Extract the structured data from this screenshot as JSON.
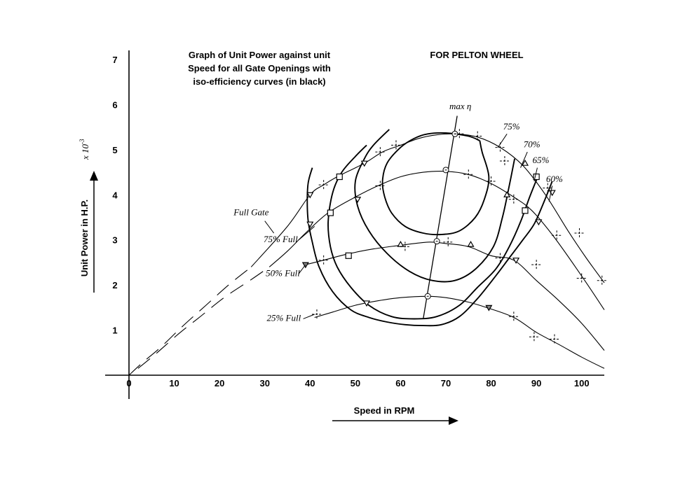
{
  "chart_data": {
    "type": "line",
    "title": "Graph of Unit Power against unit Speed for all Gate Openings with iso-efficiency curves (in black)",
    "title_lines": [
      "Graph of Unit Power against unit",
      "Speed for all Gate Openings with",
      "iso-efficiency curves (in black)"
    ],
    "subtitle": "FOR PELTON WHEEL",
    "xlabel": "Speed in RPM",
    "ylabel": "Unit Power in H.P.",
    "y_multiplier": "x 10",
    "y_multiplier_exp": "-3",
    "xlim": [
      0,
      105
    ],
    "ylim": [
      0,
      7
    ],
    "x_ticks": [
      "0",
      "10",
      "20",
      "30",
      "40",
      "50",
      "60",
      "70",
      "80",
      "90",
      "100"
    ],
    "y_ticks": [
      "1",
      "2",
      "3",
      "4",
      "5",
      "6",
      "7"
    ],
    "grid": false,
    "series": [
      {
        "name": "Full Gate",
        "dashed_x": [
          0,
          3,
          7,
          12,
          17,
          22,
          27
        ],
        "dashed_y": [
          0,
          0.28,
          0.62,
          1.1,
          1.55,
          2.0,
          2.4
        ],
        "x": [
          27,
          35,
          40,
          43,
          46,
          52,
          56,
          60,
          64,
          68,
          72,
          77,
          82,
          87,
          92,
          97,
          101,
          105
        ],
        "y": [
          2.4,
          3.3,
          4.0,
          4.22,
          4.4,
          4.7,
          4.95,
          5.1,
          5.25,
          5.33,
          5.35,
          5.28,
          5.05,
          4.65,
          4.0,
          3.2,
          2.6,
          2.05
        ]
      },
      {
        "name": "75% Full",
        "dashed_x": [
          2,
          6,
          11,
          16,
          21,
          27,
          31
        ],
        "dashed_y": [
          0.15,
          0.48,
          0.92,
          1.32,
          1.72,
          2.12,
          2.4
        ],
        "x": [
          31,
          35,
          39,
          44,
          50,
          55,
          60,
          65,
          70,
          75,
          80,
          85,
          89,
          94,
          100,
          105
        ],
        "y": [
          2.4,
          2.75,
          3.15,
          3.6,
          3.95,
          4.2,
          4.4,
          4.5,
          4.52,
          4.45,
          4.25,
          3.95,
          3.65,
          3.05,
          2.2,
          1.45
        ]
      },
      {
        "name": "50% Full",
        "x": [
          39,
          43,
          48,
          54,
          60,
          66,
          70,
          75,
          80,
          85,
          90,
          95,
          100,
          105
        ],
        "y": [
          2.45,
          2.55,
          2.68,
          2.8,
          2.88,
          2.95,
          2.92,
          2.85,
          2.65,
          2.55,
          2.1,
          1.65,
          1.15,
          0.55
        ]
      },
      {
        "name": "25% Full",
        "x": [
          41,
          45,
          50,
          55,
          60,
          66,
          70,
          75,
          79,
          85,
          90,
          95,
          100,
          105
        ],
        "y": [
          1.28,
          1.4,
          1.55,
          1.65,
          1.72,
          1.75,
          1.72,
          1.62,
          1.5,
          1.28,
          0.95,
          0.68,
          0.4,
          0.15
        ]
      }
    ],
    "iso_efficiency": [
      {
        "name": "75%",
        "label_at": [
          83,
          5.4
        ],
        "x": [
          77.5,
          75,
          70,
          66,
          63,
          60,
          57,
          56,
          56.5,
          58,
          61,
          65,
          69,
          73,
          76.5,
          78.5,
          79.5,
          78,
          77.5
        ],
        "y": [
          5.2,
          5.3,
          5.37,
          5.35,
          5.25,
          5.05,
          4.7,
          4.3,
          3.95,
          3.6,
          3.3,
          3.15,
          3.12,
          3.2,
          3.5,
          3.9,
          4.4,
          4.95,
          5.2
        ]
      },
      {
        "name": "70%",
        "label_at": [
          87.5,
          5.0
        ],
        "x": [
          57.5,
          54,
          52,
          50,
          50.5,
          53,
          57,
          62,
          67,
          72,
          76.5,
          80.5,
          82.5,
          84,
          85.2
        ],
        "y": [
          5.45,
          5.1,
          4.8,
          4.3,
          3.75,
          3.2,
          2.7,
          2.3,
          2.1,
          2.1,
          2.35,
          2.85,
          3.5,
          4.2,
          4.8
        ]
      },
      {
        "name": "65%",
        "label_at": [
          89.5,
          4.6
        ],
        "x": [
          52.5,
          50,
          47,
          45,
          44,
          44.5,
          46,
          49,
          53,
          58,
          63,
          68,
          73,
          77,
          81,
          84,
          86.5,
          88.5,
          90.5
        ],
        "y": [
          5.1,
          4.85,
          4.5,
          4.05,
          3.4,
          2.85,
          2.4,
          1.95,
          1.55,
          1.3,
          1.25,
          1.3,
          1.55,
          1.95,
          2.35,
          2.85,
          3.4,
          3.95,
          4.45
        ]
      },
      {
        "name": "60%",
        "label_at": [
          92.3,
          4.3
        ],
        "x": [
          40.5,
          39.5,
          39.5,
          40.5,
          42,
          45,
          49,
          53,
          57,
          61,
          65,
          69,
          73,
          77,
          81,
          84,
          87,
          89.5,
          91.5,
          93.5
        ],
        "y": [
          4.6,
          4.2,
          3.5,
          2.95,
          2.4,
          1.85,
          1.45,
          1.28,
          1.18,
          1.12,
          1.1,
          1.12,
          1.3,
          1.7,
          2.2,
          2.6,
          3.0,
          3.35,
          3.8,
          4.3
        ]
      }
    ],
    "max_efficiency_line": {
      "name": "max η",
      "x": [
        65,
        72.5
      ],
      "y": [
        1.25,
        5.75
      ]
    },
    "curve_labels": {
      "full_gate": "Full Gate",
      "gate75": "75% Full",
      "gate50": "50% Full",
      "gate25": "25% Full",
      "max_eta": "max η",
      "eff75": "75%",
      "eff70": "70%",
      "eff65": "65%",
      "eff60": "60%"
    },
    "markers": {
      "circle": [
        [
          72,
          5.35
        ],
        [
          70,
          4.55
        ],
        [
          68,
          2.97
        ],
        [
          66,
          1.75
        ]
      ],
      "tri_down": [
        [
          40,
          4.0
        ],
        [
          40,
          3.35
        ],
        [
          50.5,
          3.9
        ],
        [
          52,
          4.7
        ],
        [
          52.5,
          1.6
        ],
        [
          85.5,
          2.55
        ],
        [
          90.5,
          3.4
        ],
        [
          93.5,
          4.05
        ]
      ],
      "square": [
        [
          44.5,
          3.6
        ],
        [
          46.5,
          4.4
        ],
        [
          48.5,
          2.65
        ],
        [
          87.5,
          3.65
        ],
        [
          90,
          4.4
        ]
      ],
      "tri_up": [
        [
          60,
          2.9
        ],
        [
          75.5,
          2.9
        ],
        [
          83.5,
          4.0
        ],
        [
          87.5,
          4.7
        ]
      ],
      "tri_down_hollow_filled": [
        [
          39,
          2.45
        ],
        [
          79.5,
          1.5
        ]
      ],
      "plus": [
        [
          43,
          4.22
        ],
        [
          59,
          5.1
        ],
        [
          55.5,
          4.95
        ],
        [
          73,
          5.35
        ],
        [
          77,
          5.3
        ],
        [
          82,
          5.05
        ],
        [
          83,
          4.75
        ],
        [
          43,
          2.55
        ],
        [
          55.5,
          4.2
        ],
        [
          75,
          4.45
        ],
        [
          80,
          4.3
        ],
        [
          85,
          3.9
        ],
        [
          92.5,
          4.15
        ],
        [
          94.5,
          3.1
        ],
        [
          99.5,
          3.15
        ],
        [
          61,
          2.85
        ],
        [
          70.5,
          2.95
        ],
        [
          82,
          2.6
        ],
        [
          90,
          2.45
        ],
        [
          100,
          2.15
        ],
        [
          104.5,
          2.1
        ],
        [
          41.5,
          1.35
        ],
        [
          85,
          1.3
        ],
        [
          89.5,
          0.85
        ],
        [
          94,
          0.8
        ]
      ]
    }
  }
}
